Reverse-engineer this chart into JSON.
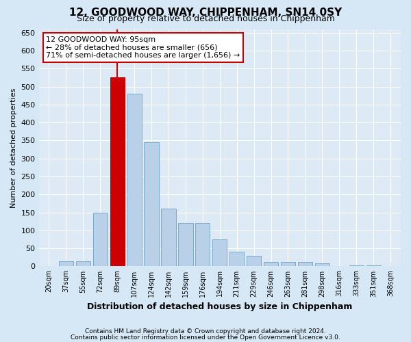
{
  "title": "12, GOODWOOD WAY, CHIPPENHAM, SN14 0SY",
  "subtitle": "Size of property relative to detached houses in Chippenham",
  "xlabel": "Distribution of detached houses by size in Chippenham",
  "ylabel": "Number of detached properties",
  "categories": [
    "20sqm",
    "37sqm",
    "55sqm",
    "72sqm",
    "89sqm",
    "107sqm",
    "124sqm",
    "142sqm",
    "159sqm",
    "176sqm",
    "194sqm",
    "211sqm",
    "229sqm",
    "246sqm",
    "263sqm",
    "281sqm",
    "298sqm",
    "316sqm",
    "333sqm",
    "351sqm",
    "368sqm"
  ],
  "values": [
    0,
    15,
    15,
    150,
    525,
    480,
    345,
    160,
    120,
    120,
    75,
    40,
    30,
    12,
    12,
    12,
    8,
    0,
    2,
    2,
    0
  ],
  "highlight_index": 4,
  "highlight_color": "#cc0000",
  "bar_color": "#b8d0e8",
  "bar_edge_color": "#7aaac8",
  "bg_color": "#d6e8f5",
  "plot_bg_color": "#ddeaf5",
  "grid_color": "#ffffff",
  "annotation_text": "12 GOODWOOD WAY: 95sqm\n← 28% of detached houses are smaller (656)\n71% of semi-detached houses are larger (1,656) →",
  "annotation_box_color": "#ffffff",
  "annotation_box_edge": "#cc0000",
  "footer1": "Contains HM Land Registry data © Crown copyright and database right 2024.",
  "footer2": "Contains public sector information licensed under the Open Government Licence v3.0.",
  "ylim": [
    0,
    660
  ],
  "yticks": [
    0,
    50,
    100,
    150,
    200,
    250,
    300,
    350,
    400,
    450,
    500,
    550,
    600,
    650
  ],
  "title_fontsize": 11,
  "subtitle_fontsize": 9,
  "ylabel_fontsize": 8,
  "xlabel_fontsize": 9
}
